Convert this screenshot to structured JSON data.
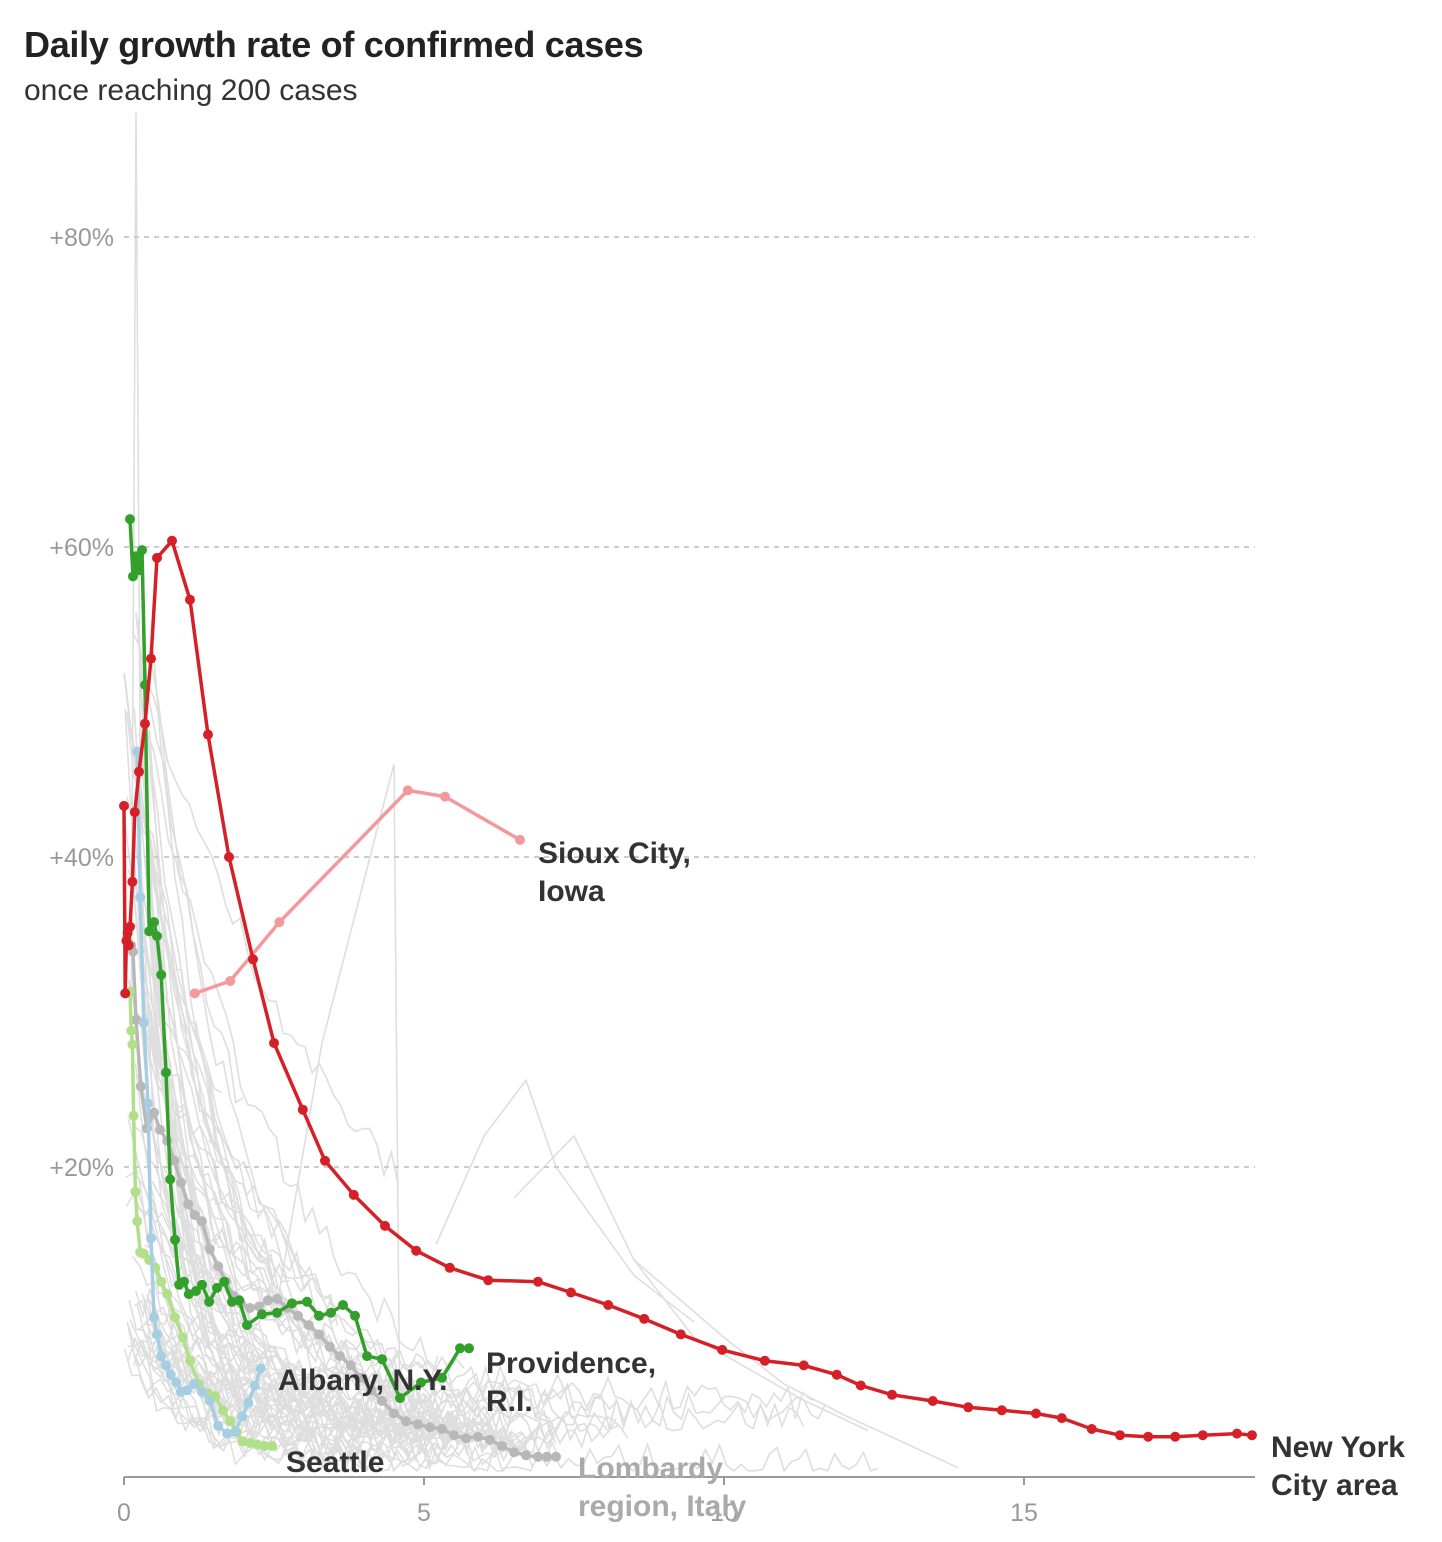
{
  "header": {
    "title": "Daily growth rate of confirmed cases",
    "subtitle": "once reaching 200 cases"
  },
  "colors": {
    "nyc": "#d62027",
    "providence": "#33a02c",
    "sioux_city": "#f4999b",
    "albany": "#a6cee3",
    "seattle": "#b2df8a",
    "lombardy": "#b8b8b8",
    "background_series": "#dedede",
    "gridline": "#cccccc",
    "axis": "#999999",
    "label_dark": "#333333",
    "label_muted": "#aaaaaa"
  },
  "chart_data": {
    "type": "line",
    "title": "Daily growth rate of confirmed cases",
    "subtitle": "once reaching 200 cases",
    "xlabel": "",
    "ylabel": "",
    "xlim": [
      0,
      18.9
    ],
    "ylim": [
      0,
      90
    ],
    "x_ticks": [
      0,
      5,
      10,
      15
    ],
    "x_tick_labels": [
      "0",
      "5",
      "10",
      "15"
    ],
    "y_ticks": [
      20,
      40,
      60,
      80
    ],
    "y_tick_labels": [
      "+20%",
      "+40%",
      "+60%",
      "+80%"
    ],
    "grid": "horizontal dashed",
    "series": [
      {
        "name": "New York City area",
        "label_lines": [
          "New York",
          "City area"
        ],
        "color_key": "nyc",
        "x": [
          0.0,
          0.02,
          0.04,
          0.06,
          0.08,
          0.1,
          0.14,
          0.18,
          0.25,
          0.35,
          0.45,
          0.55,
          0.8,
          1.1,
          1.4,
          1.75,
          2.15,
          2.5,
          2.98,
          3.35,
          3.83,
          4.35,
          4.87,
          5.43,
          6.07,
          6.9,
          7.45,
          8.07,
          8.67,
          9.28,
          9.97,
          10.68,
          11.33,
          11.88,
          12.28,
          12.8,
          13.48,
          14.07,
          14.63,
          15.2,
          15.63,
          16.13,
          16.6,
          17.07,
          17.52,
          17.98,
          18.55,
          18.8
        ],
        "y": [
          43.3,
          31.2,
          34.6,
          35.1,
          34.3,
          35.5,
          38.4,
          42.9,
          45.5,
          48.6,
          52.8,
          59.3,
          60.4,
          56.6,
          47.9,
          40.0,
          33.4,
          28.0,
          23.7,
          20.4,
          18.2,
          16.2,
          14.6,
          13.5,
          12.7,
          12.6,
          11.9,
          11.1,
          10.2,
          9.2,
          8.2,
          7.5,
          7.2,
          6.6,
          5.9,
          5.3,
          4.9,
          4.5,
          4.3,
          4.1,
          3.8,
          3.1,
          2.7,
          2.6,
          2.6,
          2.7,
          2.8,
          2.7
        ]
      },
      {
        "name": "Providence, R.I.",
        "label_lines": [
          "Providence,",
          "R.I."
        ],
        "color_key": "providence",
        "x": [
          0.1,
          0.15,
          0.2,
          0.25,
          0.3,
          0.35,
          0.42,
          0.5,
          0.55,
          0.62,
          0.7,
          0.77,
          0.85,
          0.92,
          1.0,
          1.08,
          1.2,
          1.3,
          1.42,
          1.55,
          1.67,
          1.8,
          1.92,
          2.05,
          2.3,
          2.55,
          2.8,
          3.05,
          3.25,
          3.45,
          3.65,
          3.85,
          4.05,
          4.3,
          4.6,
          4.95,
          5.3,
          5.6,
          5.75
        ],
        "y": [
          61.8,
          58.1,
          59.4,
          58.5,
          59.8,
          51.1,
          35.2,
          35.8,
          34.9,
          32.4,
          26.1,
          19.2,
          15.3,
          12.4,
          12.6,
          11.8,
          12.0,
          12.4,
          11.3,
          12.2,
          12.6,
          11.3,
          11.4,
          9.8,
          10.5,
          10.6,
          11.2,
          11.3,
          10.4,
          10.6,
          11.1,
          10.4,
          7.8,
          7.6,
          5.1,
          6.1,
          6.4,
          8.3,
          8.3
        ]
      },
      {
        "name": "Sioux City, Iowa",
        "label_lines": [
          "Sioux City,",
          "Iowa"
        ],
        "color_key": "sioux_city",
        "x": [
          1.18,
          1.77,
          2.59,
          4.73,
          5.35,
          6.6
        ],
        "y": [
          31.2,
          32.0,
          35.8,
          44.3,
          43.9,
          41.1
        ]
      },
      {
        "name": "Albany, N.Y.",
        "label_lines": [
          "Albany, N.Y."
        ],
        "color_key": "albany",
        "x": [
          0.22,
          0.27,
          0.33,
          0.4,
          0.45,
          0.5,
          0.55,
          0.62,
          0.7,
          0.78,
          0.87,
          0.95,
          1.05,
          1.17,
          1.3,
          1.43,
          1.57,
          1.72,
          1.85,
          1.97,
          2.07,
          2.18,
          2.28
        ],
        "y": [
          46.8,
          37.4,
          29.3,
          24.1,
          15.4,
          10.3,
          9.2,
          7.8,
          7.2,
          6.6,
          6.1,
          5.5,
          5.6,
          6.0,
          5.5,
          4.9,
          3.3,
          2.8,
          2.9,
          3.9,
          4.8,
          5.9,
          7.0
        ]
      },
      {
        "name": "Seattle",
        "label_lines": [
          "Seattle"
        ],
        "color_key": "seattle",
        "x": [
          0.1,
          0.12,
          0.14,
          0.16,
          0.19,
          0.22,
          0.27,
          0.33,
          0.42,
          0.52,
          0.62,
          0.72,
          0.85,
          0.98,
          1.1,
          1.25,
          1.4,
          1.52,
          1.65,
          1.77,
          1.88,
          1.98,
          2.1,
          2.22,
          2.35,
          2.47
        ],
        "y": [
          31.3,
          28.8,
          27.9,
          23.3,
          18.4,
          16.5,
          14.5,
          14.4,
          14.0,
          13.5,
          12.6,
          11.8,
          10.3,
          9.0,
          7.5,
          6.0,
          5.4,
          5.2,
          4.3,
          3.6,
          2.9,
          2.3,
          2.2,
          2.1,
          2.0,
          2.0
        ]
      },
      {
        "name": "Lombardy region, Italy",
        "label_lines": [
          "Lombardy",
          "region, Italy"
        ],
        "color_key": "lombardy",
        "x": [
          0.12,
          0.15,
          0.2,
          0.28,
          0.38,
          0.5,
          0.6,
          0.72,
          0.84,
          0.95,
          1.07,
          1.18,
          1.3,
          1.43,
          1.57,
          1.7,
          1.82,
          1.95,
          2.1,
          2.25,
          2.4,
          2.55,
          2.72,
          2.9,
          3.08,
          3.25,
          3.43,
          3.6,
          3.78,
          3.95,
          4.12,
          4.3,
          4.5,
          4.7,
          4.9,
          5.1,
          5.3,
          5.5,
          5.7,
          5.9,
          6.1,
          6.3,
          6.5,
          6.7,
          6.9,
          7.05,
          7.2
        ],
        "y": [
          34.3,
          33.9,
          29.5,
          25.2,
          22.5,
          23.5,
          22.4,
          21.7,
          20.4,
          19.0,
          17.6,
          16.9,
          16.5,
          14.7,
          13.6,
          12.6,
          11.7,
          11.2,
          10.9,
          11.0,
          11.4,
          11.5,
          10.9,
          10.4,
          9.8,
          9.2,
          8.4,
          7.8,
          7.2,
          6.4,
          5.6,
          4.9,
          4.1,
          3.6,
          3.4,
          3.2,
          3.1,
          2.7,
          2.5,
          2.6,
          2.4,
          2.0,
          1.6,
          1.4,
          1.3,
          1.3,
          1.3
        ]
      }
    ]
  }
}
